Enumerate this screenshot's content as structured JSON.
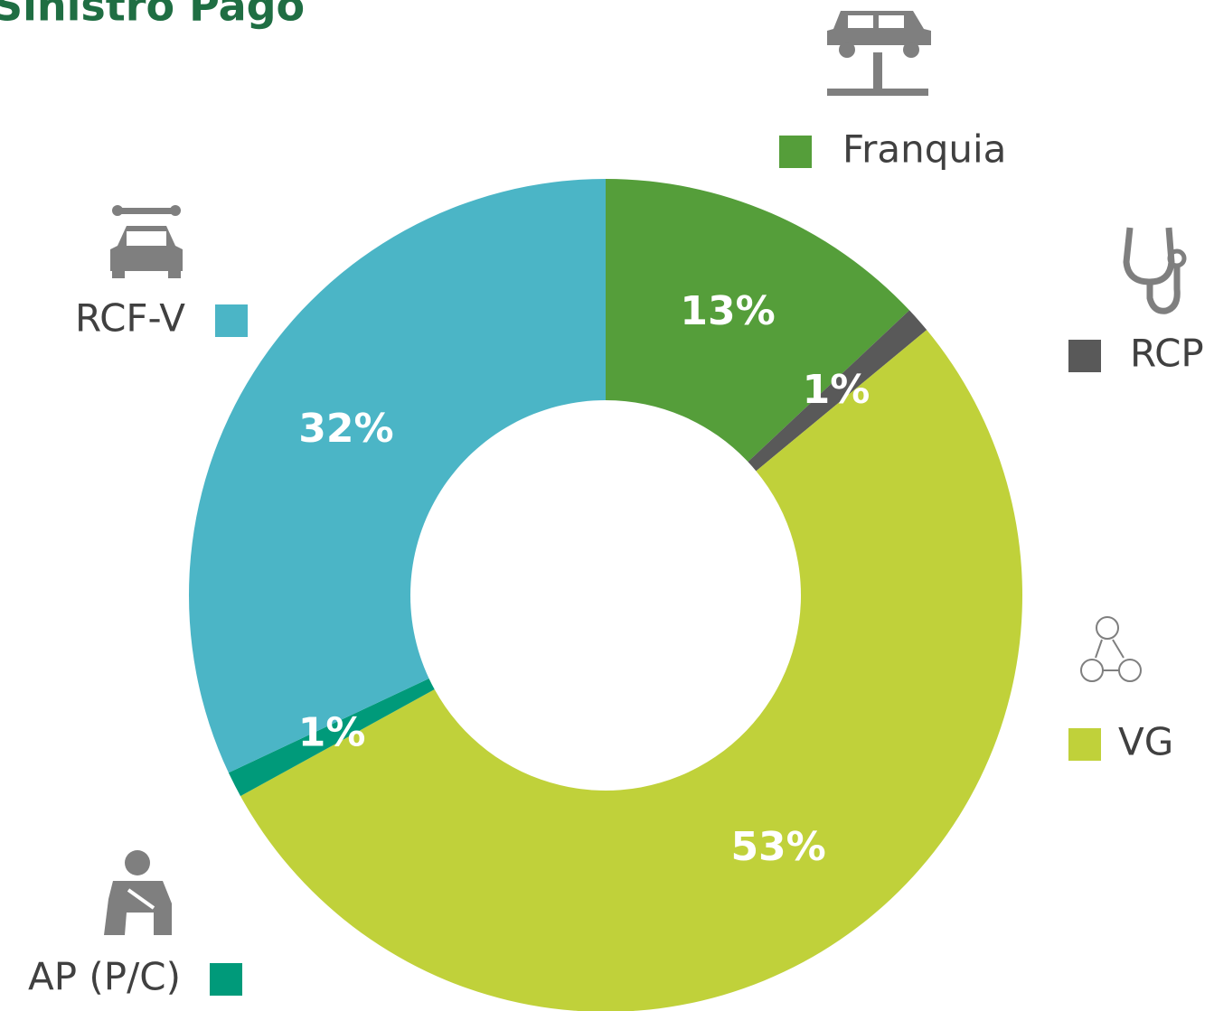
{
  "chart_data": {
    "type": "donut",
    "title": "Sinistro Pago",
    "categories": [
      "Franquia",
      "RCP",
      "VG",
      "AP (P/C)",
      "RCF-V"
    ],
    "values": [
      13,
      1,
      53,
      1,
      32
    ],
    "value_labels": [
      "13%",
      "1%",
      "53%",
      "1%",
      "32%"
    ],
    "colors": [
      "#559e3a",
      "#595959",
      "#c0d13a",
      "#009a7a",
      "#4bb5c6"
    ]
  }
}
